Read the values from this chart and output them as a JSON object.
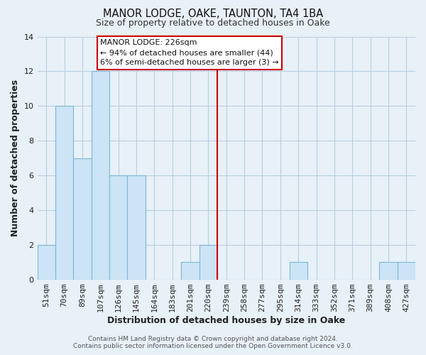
{
  "title": "MANOR LODGE, OAKE, TAUNTON, TA4 1BA",
  "subtitle": "Size of property relative to detached houses in Oake",
  "xlabel": "Distribution of detached houses by size in Oake",
  "ylabel": "Number of detached properties",
  "bar_color": "#cce4f5",
  "bar_edge_color": "#7ab8d9",
  "categories": [
    "51sqm",
    "70sqm",
    "89sqm",
    "107sqm",
    "126sqm",
    "145sqm",
    "164sqm",
    "183sqm",
    "201sqm",
    "220sqm",
    "239sqm",
    "258sqm",
    "277sqm",
    "295sqm",
    "314sqm",
    "333sqm",
    "352sqm",
    "371sqm",
    "389sqm",
    "408sqm",
    "427sqm"
  ],
  "values": [
    2,
    10,
    7,
    12,
    6,
    6,
    0,
    0,
    1,
    2,
    0,
    0,
    0,
    0,
    1,
    0,
    0,
    0,
    0,
    1,
    1
  ],
  "ylim": [
    0,
    14
  ],
  "yticks": [
    0,
    2,
    4,
    6,
    8,
    10,
    12,
    14
  ],
  "vline_x_index": 9.5,
  "vline_color": "#cc0000",
  "annotation_title": "MANOR LODGE: 226sqm",
  "annotation_line1": "← 94% of detached houses are smaller (44)",
  "annotation_line2": "6% of semi-detached houses are larger (3) →",
  "annotation_box_facecolor": "#ffffff",
  "annotation_box_edgecolor": "#cc0000",
  "footer1": "Contains HM Land Registry data © Crown copyright and database right 2024.",
  "footer2": "Contains public sector information licensed under the Open Government Licence v3.0.",
  "fig_facecolor": "#e8f0f8",
  "ax_facecolor": "#e8f0f8",
  "grid_color": "#b8cfe0",
  "title_fontsize": 10.5,
  "subtitle_fontsize": 9,
  "tick_fontsize": 8,
  "axis_label_fontsize": 9,
  "footer_fontsize": 6.5
}
